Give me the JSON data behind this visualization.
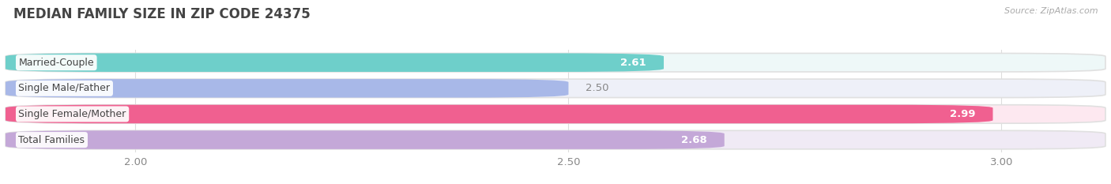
{
  "title": "MEDIAN FAMILY SIZE IN ZIP CODE 24375",
  "source": "Source: ZipAtlas.com",
  "categories": [
    "Married-Couple",
    "Single Male/Father",
    "Single Female/Mother",
    "Total Families"
  ],
  "values": [
    2.61,
    2.5,
    2.99,
    2.68
  ],
  "bar_colors": [
    "#6ecfca",
    "#a8b8e8",
    "#f06090",
    "#c4a8d8"
  ],
  "bar_bg_colors": [
    "#eef8f8",
    "#eef0f8",
    "#fde8f0",
    "#f0eaf5"
  ],
  "xlim": [
    1.85,
    3.12
  ],
  "xticks": [
    2.0,
    2.5,
    3.0
  ],
  "background_color": "#ffffff",
  "bar_height": 0.72,
  "label_inside_color": [
    "#ffffff",
    "#888888",
    "#ffffff",
    "#ffffff"
  ],
  "title_fontsize": 12,
  "tick_fontsize": 9.5,
  "label_fontsize": 9.5,
  "category_fontsize": 9.0,
  "bar_spacing": 1.0
}
